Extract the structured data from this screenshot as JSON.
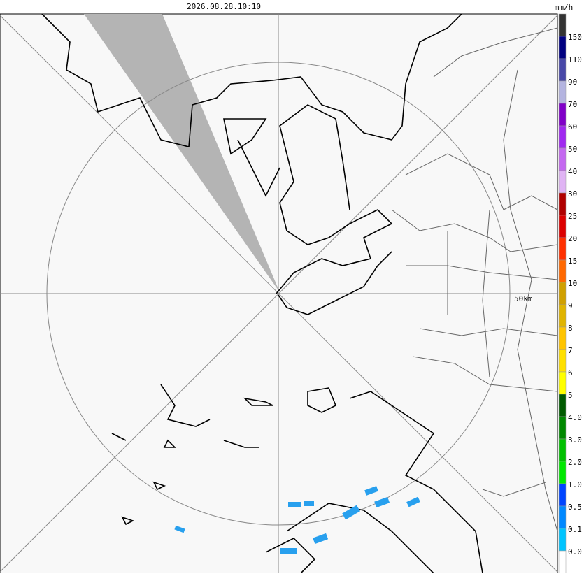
{
  "header": {
    "timestamp": "2026.08.28.10:10"
  },
  "legend": {
    "unit": "mm/h",
    "labels": [
      "150",
      "110",
      "90",
      "70",
      "60",
      "50",
      "40",
      "30",
      "25",
      "20",
      "15",
      "10",
      "9",
      "8",
      "7",
      "6",
      "5",
      "4.0",
      "3.0",
      "2.0",
      "1.0",
      "0.5",
      "0.1",
      "0.0"
    ],
    "colors": [
      "#333333",
      "#000080",
      "#4848a8",
      "#b4b4e0",
      "#8000c8",
      "#a028f0",
      "#c468f0",
      "#e0b4f4",
      "#b00000",
      "#dc0000",
      "#ff3000",
      "#ff6800",
      "#d0a000",
      "#e0b400",
      "#ffc400",
      "#ffe000",
      "#ffff00",
      "#005a00",
      "#008800",
      "#00c000",
      "#00e800",
      "#0044ff",
      "#0088ff",
      "#00c4ff",
      "#ffffff"
    ]
  },
  "map": {
    "range_label": "50km"
  }
}
